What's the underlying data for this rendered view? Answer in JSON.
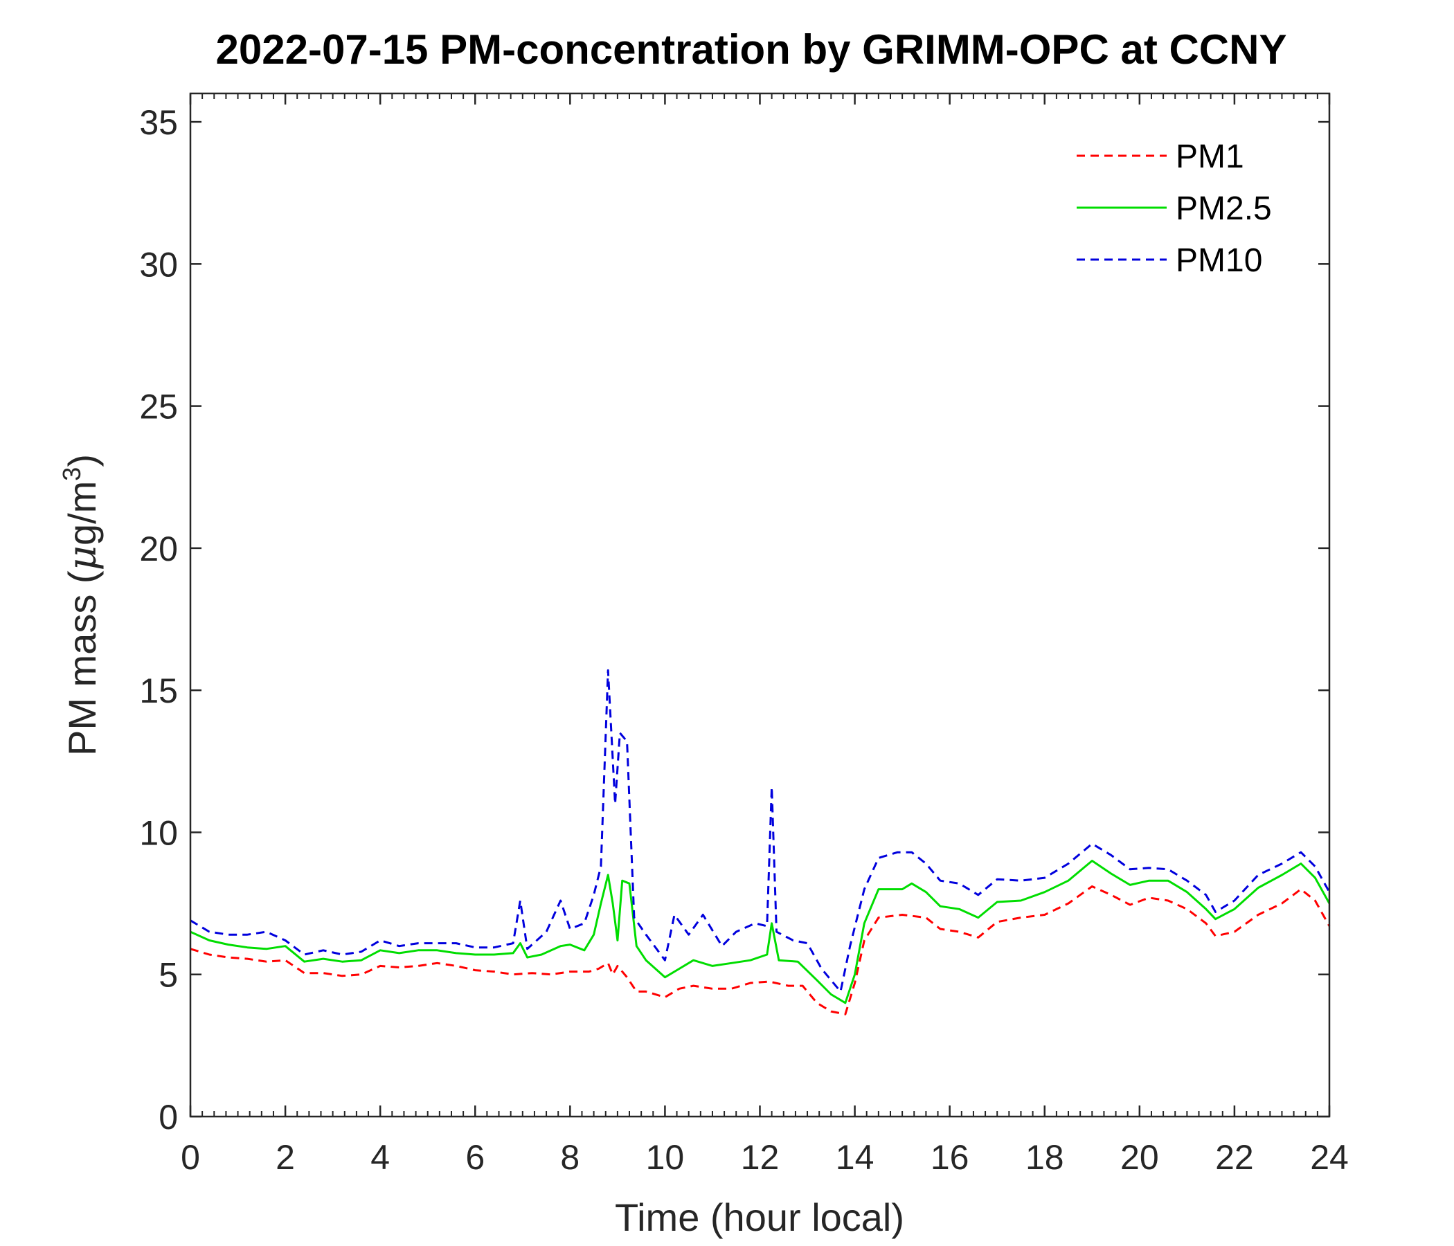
{
  "chart_data": {
    "type": "line",
    "title": "2022-07-15 PM-concentration by GRIMM-OPC at CCNY",
    "xlabel": "Time (hour local)",
    "ylabel": {
      "prefix": "PM mass (",
      "mu": "μ",
      "unit": "g/m",
      "sup": "3",
      "suffix": ")"
    },
    "xlim": [
      0,
      24
    ],
    "ylim": [
      0,
      36
    ],
    "xticks": [
      0,
      2,
      4,
      6,
      8,
      10,
      12,
      14,
      16,
      18,
      20,
      22,
      24
    ],
    "yticks": [
      0,
      5,
      10,
      15,
      20,
      25,
      30,
      35
    ],
    "xtick_labels": [
      "0",
      "2",
      "4",
      "6",
      "8",
      "10",
      "12",
      "14",
      "16",
      "18",
      "20",
      "22",
      "24"
    ],
    "ytick_labels": [
      "0",
      "5",
      "10",
      "15",
      "20",
      "25",
      "30",
      "35"
    ],
    "grid": false,
    "legend_position": "top-right",
    "series": [
      {
        "name": "PM1",
        "color": "#ff0000",
        "dash": "dashed",
        "points": [
          [
            0,
            5.9
          ],
          [
            0.4,
            5.7
          ],
          [
            0.8,
            5.6
          ],
          [
            1.2,
            5.55
          ],
          [
            1.6,
            5.45
          ],
          [
            2.0,
            5.5
          ],
          [
            2.4,
            5.05
          ],
          [
            2.8,
            5.05
          ],
          [
            3.2,
            4.95
          ],
          [
            3.6,
            5.0
          ],
          [
            4.0,
            5.3
          ],
          [
            4.4,
            5.25
          ],
          [
            4.8,
            5.3
          ],
          [
            5.2,
            5.4
          ],
          [
            5.6,
            5.3
          ],
          [
            6.0,
            5.15
          ],
          [
            6.4,
            5.1
          ],
          [
            6.8,
            5.0
          ],
          [
            7.2,
            5.05
          ],
          [
            7.6,
            5.0
          ],
          [
            8.0,
            5.1
          ],
          [
            8.4,
            5.1
          ],
          [
            8.6,
            5.2
          ],
          [
            8.8,
            5.4
          ],
          [
            8.9,
            5.0
          ],
          [
            9.0,
            5.3
          ],
          [
            9.2,
            4.9
          ],
          [
            9.4,
            4.4
          ],
          [
            9.6,
            4.4
          ],
          [
            10.0,
            4.2
          ],
          [
            10.3,
            4.5
          ],
          [
            10.6,
            4.6
          ],
          [
            11.0,
            4.5
          ],
          [
            11.4,
            4.5
          ],
          [
            11.8,
            4.7
          ],
          [
            12.2,
            4.75
          ],
          [
            12.6,
            4.6
          ],
          [
            12.9,
            4.6
          ],
          [
            13.2,
            4.0
          ],
          [
            13.5,
            3.7
          ],
          [
            13.8,
            3.6
          ],
          [
            14.0,
            4.7
          ],
          [
            14.2,
            6.2
          ],
          [
            14.5,
            7.0
          ],
          [
            15.0,
            7.1
          ],
          [
            15.5,
            7.0
          ],
          [
            15.8,
            6.6
          ],
          [
            16.2,
            6.5
          ],
          [
            16.6,
            6.3
          ],
          [
            17.0,
            6.85
          ],
          [
            17.5,
            7.0
          ],
          [
            18.0,
            7.1
          ],
          [
            18.5,
            7.5
          ],
          [
            19.0,
            8.1
          ],
          [
            19.4,
            7.8
          ],
          [
            19.8,
            7.45
          ],
          [
            20.2,
            7.7
          ],
          [
            20.6,
            7.6
          ],
          [
            21.0,
            7.3
          ],
          [
            21.4,
            6.8
          ],
          [
            21.6,
            6.35
          ],
          [
            22.0,
            6.5
          ],
          [
            22.5,
            7.1
          ],
          [
            23.0,
            7.5
          ],
          [
            23.4,
            8.0
          ],
          [
            23.7,
            7.6
          ],
          [
            24.0,
            6.7
          ]
        ]
      },
      {
        "name": "PM2.5",
        "color": "#00dd00",
        "dash": "solid",
        "points": [
          [
            0,
            6.5
          ],
          [
            0.4,
            6.2
          ],
          [
            0.8,
            6.05
          ],
          [
            1.2,
            5.95
          ],
          [
            1.6,
            5.9
          ],
          [
            2.0,
            6.0
          ],
          [
            2.4,
            5.45
          ],
          [
            2.8,
            5.55
          ],
          [
            3.2,
            5.45
          ],
          [
            3.6,
            5.5
          ],
          [
            4.0,
            5.85
          ],
          [
            4.4,
            5.75
          ],
          [
            4.8,
            5.85
          ],
          [
            5.2,
            5.85
          ],
          [
            5.6,
            5.75
          ],
          [
            6.0,
            5.7
          ],
          [
            6.4,
            5.7
          ],
          [
            6.8,
            5.75
          ],
          [
            6.95,
            6.1
          ],
          [
            7.1,
            5.6
          ],
          [
            7.4,
            5.7
          ],
          [
            7.8,
            6.0
          ],
          [
            8.0,
            6.05
          ],
          [
            8.3,
            5.85
          ],
          [
            8.5,
            6.4
          ],
          [
            8.65,
            7.5
          ],
          [
            8.8,
            8.5
          ],
          [
            8.9,
            7.5
          ],
          [
            9.0,
            6.2
          ],
          [
            9.1,
            8.3
          ],
          [
            9.25,
            8.2
          ],
          [
            9.4,
            6.0
          ],
          [
            9.6,
            5.5
          ],
          [
            10.0,
            4.9
          ],
          [
            10.3,
            5.2
          ],
          [
            10.6,
            5.5
          ],
          [
            11.0,
            5.3
          ],
          [
            11.4,
            5.4
          ],
          [
            11.8,
            5.5
          ],
          [
            12.15,
            5.7
          ],
          [
            12.25,
            6.8
          ],
          [
            12.4,
            5.5
          ],
          [
            12.8,
            5.45
          ],
          [
            13.2,
            4.8
          ],
          [
            13.5,
            4.3
          ],
          [
            13.8,
            4.0
          ],
          [
            14.0,
            5.0
          ],
          [
            14.2,
            6.8
          ],
          [
            14.5,
            8.0
          ],
          [
            15.0,
            8.0
          ],
          [
            15.2,
            8.2
          ],
          [
            15.5,
            7.9
          ],
          [
            15.8,
            7.4
          ],
          [
            16.2,
            7.3
          ],
          [
            16.6,
            7.0
          ],
          [
            17.0,
            7.55
          ],
          [
            17.5,
            7.6
          ],
          [
            18.0,
            7.9
          ],
          [
            18.5,
            8.3
          ],
          [
            19.0,
            9.0
          ],
          [
            19.4,
            8.55
          ],
          [
            19.8,
            8.15
          ],
          [
            20.2,
            8.3
          ],
          [
            20.6,
            8.3
          ],
          [
            21.0,
            7.9
          ],
          [
            21.4,
            7.3
          ],
          [
            21.6,
            6.95
          ],
          [
            22.0,
            7.3
          ],
          [
            22.5,
            8.05
          ],
          [
            23.0,
            8.5
          ],
          [
            23.4,
            8.9
          ],
          [
            23.7,
            8.4
          ],
          [
            24.0,
            7.5
          ]
        ]
      },
      {
        "name": "PM10",
        "color": "#0000dd",
        "dash": "dashed",
        "points": [
          [
            0,
            6.9
          ],
          [
            0.4,
            6.5
          ],
          [
            0.8,
            6.4
          ],
          [
            1.2,
            6.4
          ],
          [
            1.6,
            6.5
          ],
          [
            2.0,
            6.2
          ],
          [
            2.4,
            5.7
          ],
          [
            2.8,
            5.85
          ],
          [
            3.2,
            5.7
          ],
          [
            3.6,
            5.8
          ],
          [
            4.0,
            6.2
          ],
          [
            4.4,
            6.0
          ],
          [
            4.8,
            6.1
          ],
          [
            5.2,
            6.1
          ],
          [
            5.6,
            6.1
          ],
          [
            6.0,
            5.95
          ],
          [
            6.4,
            5.95
          ],
          [
            6.8,
            6.1
          ],
          [
            6.95,
            7.6
          ],
          [
            7.1,
            5.9
          ],
          [
            7.5,
            6.5
          ],
          [
            7.8,
            7.6
          ],
          [
            8.0,
            6.6
          ],
          [
            8.3,
            6.8
          ],
          [
            8.5,
            7.8
          ],
          [
            8.65,
            8.8
          ],
          [
            8.8,
            15.7
          ],
          [
            8.95,
            11.0
          ],
          [
            9.05,
            13.5
          ],
          [
            9.2,
            13.2
          ],
          [
            9.35,
            7.0
          ],
          [
            9.6,
            6.4
          ],
          [
            10.0,
            5.5
          ],
          [
            10.2,
            7.1
          ],
          [
            10.5,
            6.4
          ],
          [
            10.8,
            7.1
          ],
          [
            11.2,
            6.0
          ],
          [
            11.5,
            6.5
          ],
          [
            11.9,
            6.8
          ],
          [
            12.15,
            6.7
          ],
          [
            12.25,
            11.6
          ],
          [
            12.35,
            6.5
          ],
          [
            12.7,
            6.2
          ],
          [
            13.0,
            6.1
          ],
          [
            13.3,
            5.2
          ],
          [
            13.7,
            4.4
          ],
          [
            13.9,
            6.0
          ],
          [
            14.2,
            8.0
          ],
          [
            14.5,
            9.1
          ],
          [
            14.9,
            9.3
          ],
          [
            15.2,
            9.3
          ],
          [
            15.5,
            8.9
          ],
          [
            15.8,
            8.3
          ],
          [
            16.2,
            8.2
          ],
          [
            16.6,
            7.8
          ],
          [
            17.0,
            8.35
          ],
          [
            17.5,
            8.3
          ],
          [
            18.0,
            8.4
          ],
          [
            18.5,
            8.9
          ],
          [
            19.0,
            9.6
          ],
          [
            19.4,
            9.2
          ],
          [
            19.8,
            8.7
          ],
          [
            20.2,
            8.75
          ],
          [
            20.6,
            8.7
          ],
          [
            21.0,
            8.3
          ],
          [
            21.4,
            7.8
          ],
          [
            21.6,
            7.2
          ],
          [
            22.0,
            7.6
          ],
          [
            22.5,
            8.5
          ],
          [
            23.0,
            8.9
          ],
          [
            23.4,
            9.3
          ],
          [
            23.7,
            8.8
          ],
          [
            24.0,
            7.9
          ]
        ]
      }
    ]
  }
}
